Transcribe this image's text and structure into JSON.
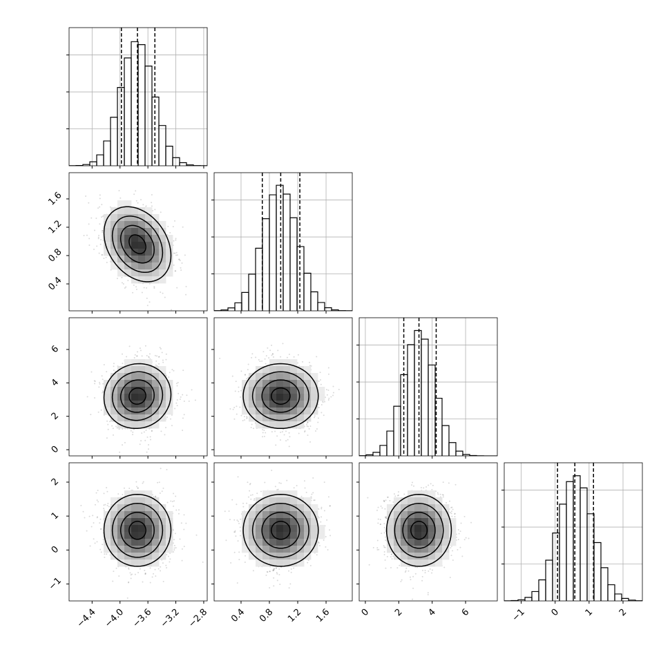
{
  "chart_data": {
    "type": "corner",
    "color": "#000000",
    "grid": true,
    "params": [
      {
        "lim": [
          -4.73,
          -2.75
        ],
        "ticks": [
          {
            "value": -4.4,
            "label": "−4.4"
          },
          {
            "value": -4.0,
            "label": "−4.0"
          },
          {
            "value": -3.6,
            "label": "−3.6"
          },
          {
            "value": -3.2,
            "label": "−3.2"
          },
          {
            "value": -2.8,
            "label": "−2.8"
          }
        ],
        "bins": [
          -4.73,
          -4.631,
          -4.532,
          -4.433,
          -4.334,
          -4.235,
          -4.136,
          -4.037,
          -3.938,
          -3.839,
          -3.74,
          -3.641,
          -3.542,
          -3.443,
          -3.344,
          -3.245,
          -3.146,
          -3.047,
          -2.948,
          -2.849,
          -2.75
        ],
        "counts": [
          1,
          4,
          17,
          54,
          148,
          336,
          657,
          1060,
          1460,
          1680,
          1640,
          1350,
          930,
          545,
          265,
          110,
          42,
          12,
          3,
          1
        ],
        "quantiles": [
          -3.98,
          -3.75,
          -3.5
        ]
      },
      {
        "lim": [
          0.02,
          1.97
        ],
        "ticks": [
          0.4,
          0.8,
          1.2,
          1.6
        ],
        "bins": [
          0.02,
          0.1175,
          0.215,
          0.3125,
          0.41,
          0.5075,
          0.605,
          0.7025,
          0.8,
          0.8975,
          0.995,
          1.0925,
          1.19,
          1.2875,
          1.385,
          1.4825,
          1.58,
          1.6775,
          1.775,
          1.8725,
          1.97
        ],
        "counts": [
          3,
          12,
          40,
          108,
          249,
          497,
          847,
          1247,
          1570,
          1700,
          1580,
          1260,
          870,
          510,
          257,
          113,
          42,
          13,
          3,
          1
        ],
        "quantiles": [
          0.7,
          0.96,
          1.23
        ]
      },
      {
        "lim": [
          -0.37,
          7.9
        ],
        "ticks": [
          0,
          2,
          4,
          6
        ],
        "bins": [
          -0.37,
          0.0435,
          0.457,
          0.8705,
          1.284,
          1.6975,
          2.111,
          2.5245,
          2.938,
          3.3515,
          3.765,
          4.1785,
          4.592,
          5.0055,
          5.419,
          5.8325,
          6.246,
          6.6595,
          7.073,
          7.4865,
          7.9
        ],
        "counts": [
          3,
          14,
          48,
          142,
          336,
          672,
          1100,
          1505,
          1697,
          1580,
          1230,
          780,
          410,
          180,
          64,
          19,
          5,
          1,
          0,
          0
        ],
        "quantiles": [
          2.3,
          3.21,
          4.24
        ]
      },
      {
        "lim": [
          -1.5,
          2.57
        ],
        "ticks": [
          {
            "value": -1,
            "label": "−1"
          },
          0,
          1,
          2
        ],
        "bins": [
          -1.5,
          -1.2965,
          -1.093,
          -0.8895,
          -0.686,
          -0.4825,
          -0.279,
          -0.0755,
          0.128,
          0.3315,
          0.535,
          0.7385,
          0.942,
          1.1455,
          1.349,
          1.5525,
          1.756,
          1.9595,
          2.163,
          2.3665,
          2.57
        ],
        "counts": [
          1,
          5,
          16,
          48,
          127,
          285,
          552,
          920,
          1310,
          1615,
          1695,
          1530,
          1180,
          790,
          450,
          219,
          94,
          34,
          11,
          2
        ],
        "quantiles": [
          0.07,
          0.58,
          1.13
        ]
      }
    ],
    "pairs": [
      {
        "x": 0,
        "y": 1,
        "corr": -0.3
      },
      {
        "x": 0,
        "y": 2,
        "corr": 0.05
      },
      {
        "x": 1,
        "y": 2,
        "corr": 0
      },
      {
        "x": 0,
        "y": 3,
        "corr": 0
      },
      {
        "x": 1,
        "y": 3,
        "corr": 0
      },
      {
        "x": 2,
        "y": 3,
        "corr": 0
      }
    ],
    "hist_ylim": [
      0,
      1870
    ],
    "hist_yticks": [
      500,
      1000,
      1500
    ]
  }
}
